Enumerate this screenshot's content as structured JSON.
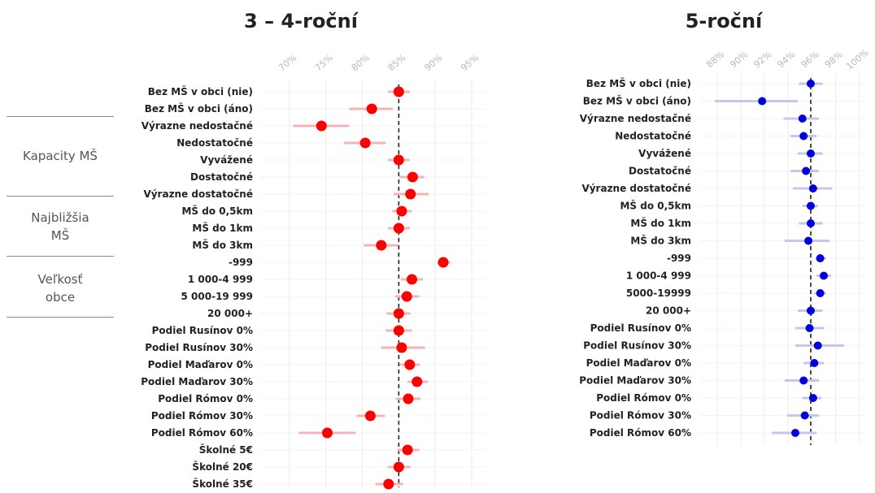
{
  "colors": {
    "panel1": "#ff0000",
    "panel1_ci": "#f4b4b4",
    "panel2": "#0000dd",
    "panel2_ci": "#c4c6ee",
    "grid": "#ececec",
    "tick_label": "#b8b8b8"
  },
  "groups": [
    "Kapacity MŠ",
    "Najbližšia MŠ",
    "Veľkosť obce"
  ],
  "chart_data": [
    {
      "type": "scatter",
      "title": "3 – 4-roční",
      "xlim": [
        66,
        97
      ],
      "x_ticks": [
        "70%",
        "75%",
        "80%",
        "85%",
        "90%",
        "95%"
      ],
      "x_tick_values": [
        70,
        75,
        80,
        85,
        90,
        95
      ],
      "reference_line": 85,
      "grid": true,
      "categories": [
        "Bez MŠ v obci (nie)",
        "Bez MŠ v obci (áno)",
        "Výrazne nedostačné",
        "Nedostatočné",
        "Vyvážené",
        "Dostatočné",
        "Výrazne dostatočné",
        "MŠ do 0,5km",
        "MŠ do 1km",
        "MŠ do 3km",
        "-999",
        "1 000-4 999",
        "5 000-19 999",
        "20 000+",
        "Podiel Rusínov 0%",
        "Podiel Rusínov 30%",
        "Podiel Maďarov 0%",
        "Podiel Maďarov 30%",
        "Podiel Rómov 0%",
        "Podiel Rómov 30%",
        "Podiel Rómov 60%",
        "Školné 5€",
        "Školné 20€",
        "Školné 35€"
      ],
      "values": [
        85,
        81.3,
        74.4,
        80.4,
        85,
        86.9,
        86.6,
        85.4,
        85,
        82.6,
        91.1,
        86.8,
        86.1,
        85,
        85,
        85.4,
        86.5,
        87.5,
        86.3,
        81.1,
        75.2,
        86.2,
        85,
        83.6
      ],
      "ci_low": [
        83.5,
        78.2,
        70.5,
        77.5,
        83.5,
        85.1,
        84.3,
        84.1,
        83.5,
        80.2,
        90.3,
        85.3,
        84.5,
        83.3,
        83.2,
        82.6,
        85.2,
        86.2,
        84.6,
        79.2,
        71.3,
        84.8,
        83.5,
        81.8
      ],
      "ci_high": [
        86.5,
        84.2,
        78.2,
        83.2,
        86.5,
        88.5,
        89.1,
        86.8,
        86.5,
        84.9,
        92.1,
        88.3,
        87.8,
        86.6,
        86.8,
        88.6,
        87.9,
        89.0,
        88.0,
        83.1,
        79.1,
        87.8,
        86.6,
        85.6
      ]
    },
    {
      "type": "scatter",
      "title": "5-roční",
      "xlim": [
        86.5,
        100.5
      ],
      "x_ticks": [
        "88%",
        "90%",
        "92%",
        "94%",
        "96%",
        "98%",
        "100%"
      ],
      "x_tick_values": [
        88,
        90,
        92,
        94,
        96,
        98,
        100
      ],
      "reference_line": 95.9,
      "grid": true,
      "categories": [
        "Bez MŠ v obci (nie)",
        "Bez MŠ v obci (áno)",
        "Výrazne nedostačné",
        "Nedostatočné",
        "Vyvážené",
        "Dostatočné",
        "Výrazne dostatočné",
        "MŠ do 0,5km",
        "MŠ do 1km",
        "MŠ do 3km",
        "-999",
        "1 000-4 999",
        "5000-19999",
        "20 000+",
        "Podiel Rusínov 0%",
        "Podiel Rusínov 30%",
        "Podiel Maďarov 0%",
        "Podiel Maďarov 30%",
        "Podiel Rómov 0%",
        "Podiel Rómov 30%",
        "Podiel Rómov 60%"
      ],
      "values": [
        95.9,
        91.8,
        95.2,
        95.3,
        95.9,
        95.5,
        96.1,
        95.9,
        95.9,
        95.7,
        96.7,
        97.0,
        96.7,
        95.9,
        95.8,
        96.5,
        96.2,
        95.3,
        96.1,
        95.4,
        94.6
      ],
      "ci_low": [
        94.9,
        87.8,
        93.6,
        94.2,
        94.8,
        94.2,
        94.4,
        95.2,
        94.9,
        93.7,
        96.3,
        96.4,
        96.2,
        94.8,
        94.6,
        94.6,
        95.3,
        93.7,
        95.2,
        93.9,
        92.6
      ],
      "ci_high": [
        96.9,
        94.8,
        96.6,
        96.4,
        96.9,
        96.6,
        97.7,
        96.5,
        96.9,
        97.5,
        97.2,
        97.6,
        97.2,
        96.9,
        97.0,
        98.7,
        97.0,
        96.6,
        96.8,
        96.6,
        96.4
      ]
    }
  ]
}
